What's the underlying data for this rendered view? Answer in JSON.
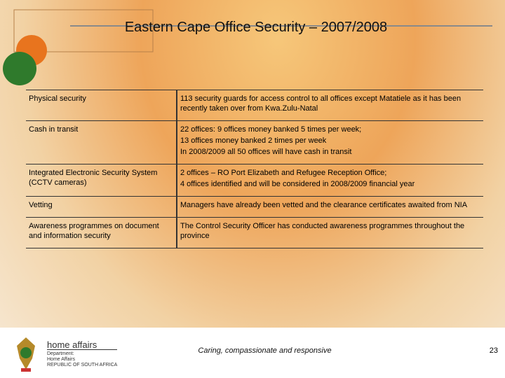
{
  "header": {
    "title": "Eastern Cape Office Security – 2007/2008"
  },
  "table": {
    "rows": [
      [
        "Physical security",
        [
          "113 security guards for access control to all offices except Matatiele as it has been recently taken over from Kwa.Zulu-Natal"
        ]
      ],
      [
        "Cash in transit",
        [
          "22 offices: 9 offices money banked 5 times per week;",
          "13 offices money banked 2 times per week",
          "In 2008/2009 all 50 offices will have cash in transit"
        ]
      ],
      [
        "Integrated Electronic Security System (CCTV cameras)",
        [
          "2 offices – RO Port Elizabeth and Refugee Reception Office;",
          "4 offices identified and will be considered in 2008/2009 financial year"
        ]
      ],
      [
        "Vetting",
        [
          "Managers have already been vetted and the clearance certificates awaited from NIA"
        ]
      ],
      [
        "Awareness programmes on document and information security",
        [
          "The Control Security Officer has conducted awareness programmes throughout the province"
        ]
      ]
    ]
  },
  "footer": {
    "brand": "home affairs",
    "department": [
      "Department:",
      "Home Affairs",
      "REPUBLIC OF SOUTH AFRICA"
    ],
    "tagline": "Caring, compassionate and responsive",
    "page": "23"
  }
}
